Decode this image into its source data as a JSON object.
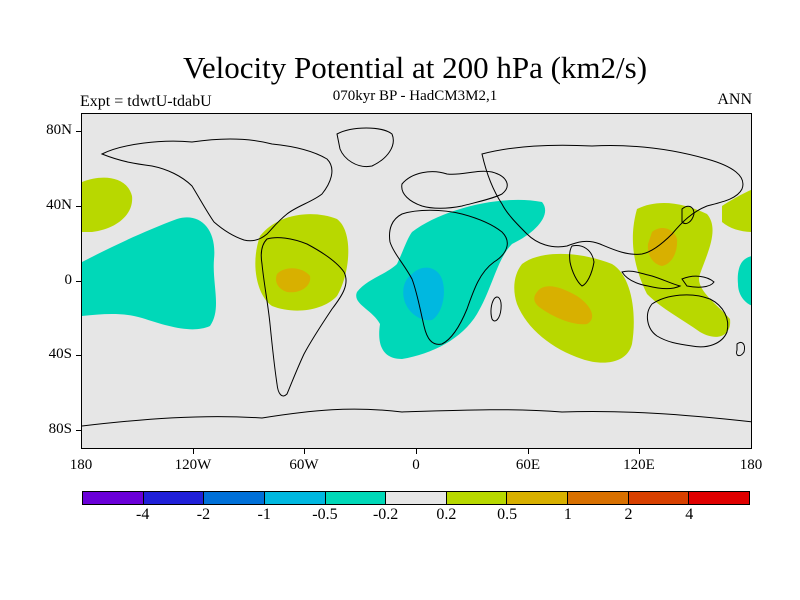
{
  "title": "Velocity Potential at 200 hPa (km2/s)",
  "subtitle": "070kyr BP - HadCM3M2,1",
  "left_label": "Expt = tdwtU-tdabU",
  "right_label": "ANN",
  "y_ticks": [
    "80N",
    "40N",
    "0",
    "40S",
    "80S"
  ],
  "x_ticks": [
    "180",
    "120W",
    "60W",
    "0",
    "60E",
    "120E",
    "180"
  ],
  "colorbar": {
    "colors": [
      "#6a00d8",
      "#2020d8",
      "#0070d8",
      "#00b8e0",
      "#00d8b8",
      "#e6e6e6",
      "#b8d800",
      "#d8b000",
      "#d87000",
      "#d84000",
      "#e00000"
    ],
    "labels": [
      "-4",
      "-2",
      "-1",
      "-0.5",
      "-0.2",
      "0.2",
      "0.5",
      "1",
      "2",
      "4"
    ]
  },
  "colors": {
    "background": "#e6e6e6",
    "positive_weak": "#b8d800",
    "positive_mid": "#d8b000",
    "negative_weak": "#00d8b8",
    "negative_mid": "#00b8e0"
  }
}
